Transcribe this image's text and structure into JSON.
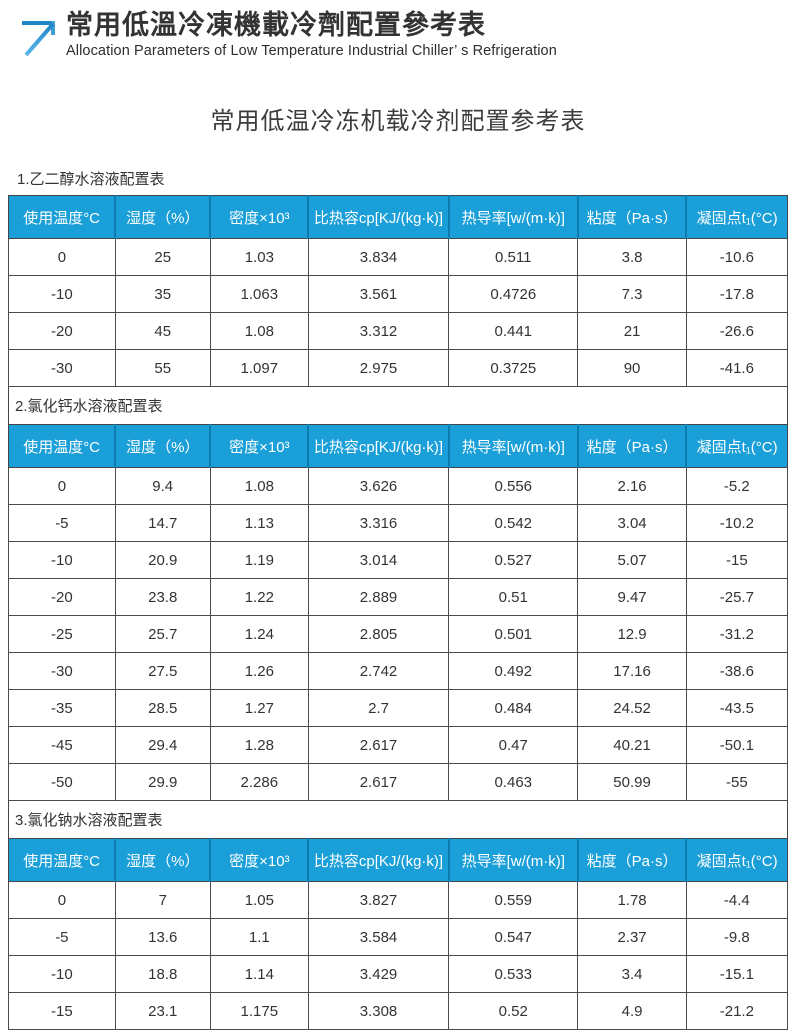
{
  "brand_header": {
    "logo": "arrow-up-right-icon",
    "title": "常用低溫冷凍機載冷劑配置參考表",
    "subtitle": "Allocation Parameters of Low Temperature Industrial Chiller’ s Refrigeration"
  },
  "page_title": "常用低温冷冻机载冷剂配置参考表",
  "columns": [
    "使用温度°C",
    "湿度（%）",
    "密度×10³",
    "比热容cp[KJ/(kg·k)]",
    "热导率[w/(m·k)]",
    "粘度（Pa·s）",
    "凝固点t₁(°C)"
  ],
  "tables": [
    {
      "label": "1.乙二醇水溶液配置表",
      "rows": [
        [
          "0",
          "25",
          "1.03",
          "3.834",
          "0.511",
          "3.8",
          "-10.6"
        ],
        [
          "-10",
          "35",
          "1.063",
          "3.561",
          "0.4726",
          "7.3",
          "-17.8"
        ],
        [
          "-20",
          "45",
          "1.08",
          "3.312",
          "0.441",
          "21",
          "-26.6"
        ],
        [
          "-30",
          "55",
          "1.097",
          "2.975",
          "0.3725",
          "90",
          "-41.6"
        ]
      ]
    },
    {
      "label": "2.氯化钙水溶液配置表",
      "rows": [
        [
          "0",
          "9.4",
          "1.08",
          "3.626",
          "0.556",
          "2.16",
          "-5.2"
        ],
        [
          "-5",
          "14.7",
          "1.13",
          "3.316",
          "0.542",
          "3.04",
          "-10.2"
        ],
        [
          "-10",
          "20.9",
          "1.19",
          "3.014",
          "0.527",
          "5.07",
          "-15"
        ],
        [
          "-20",
          "23.8",
          "1.22",
          "2.889",
          "0.51",
          "9.47",
          "-25.7"
        ],
        [
          "-25",
          "25.7",
          "1.24",
          "2.805",
          "0.501",
          "12.9",
          "-31.2"
        ],
        [
          "-30",
          "27.5",
          "1.26",
          "2.742",
          "0.492",
          "17.16",
          "-38.6"
        ],
        [
          "-35",
          "28.5",
          "1.27",
          "2.7",
          "0.484",
          "24.52",
          "-43.5"
        ],
        [
          "-45",
          "29.4",
          "1.28",
          "2.617",
          "0.47",
          "40.21",
          "-50.1"
        ],
        [
          "-50",
          "29.9",
          "2.286",
          "2.617",
          "0.463",
          "50.99",
          "-55"
        ]
      ]
    },
    {
      "label": "3.氯化钠水溶液配置表",
      "rows": [
        [
          "0",
          "7",
          "1.05",
          "3.827",
          "0.559",
          "1.78",
          "-4.4"
        ],
        [
          "-5",
          "13.6",
          "1.1",
          "3.584",
          "0.547",
          "2.37",
          "-9.8"
        ],
        [
          "-10",
          "18.8",
          "1.14",
          "3.429",
          "0.533",
          "3.4",
          "-15.1"
        ],
        [
          "-15",
          "23.1",
          "1.175",
          "3.308",
          "0.52",
          "4.9",
          "-21.2"
        ]
      ]
    }
  ],
  "column_widths_pct": [
    13.7,
    12.2,
    12.6,
    18.0,
    16.6,
    13.9,
    13.0
  ],
  "colors": {
    "header_bg": "#1A9FD8",
    "header_divider": "#0D7BB0",
    "header_text": "#FFFFFF",
    "grid_border": "#4A4A4A",
    "body_text": "#333333",
    "logo_blue_dark": "#1F86C6",
    "logo_blue_light": "#5CB8E8"
  }
}
